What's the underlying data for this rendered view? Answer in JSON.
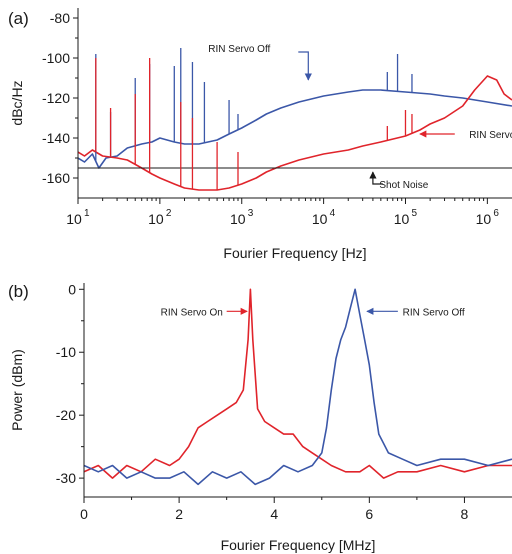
{
  "colors": {
    "blue": "#3b57a8",
    "red": "#e0242b",
    "black": "#1a1a1a"
  },
  "chart_data": [
    {
      "panel": "(a)",
      "type": "line",
      "xscale": "log",
      "xlim": [
        10,
        2000000
      ],
      "ylim": [
        -170,
        -75
      ],
      "ylabel": "dBc/Hz",
      "xlabel": "Fourier Frequency [Hz]",
      "x_ticks": [
        {
          "base": "10",
          "exp": "1",
          "value": 10
        },
        {
          "base": "10",
          "exp": "2",
          "value": 100
        },
        {
          "base": "10",
          "exp": "3",
          "value": 1000
        },
        {
          "base": "10",
          "exp": "4",
          "value": 10000
        },
        {
          "base": "10",
          "exp": "5",
          "value": 100000
        },
        {
          "base": "10",
          "exp": "6",
          "value": 1000000
        }
      ],
      "y_ticks": [
        {
          "label": "-80",
          "value": -80
        },
        {
          "label": "-100",
          "value": -100
        },
        {
          "label": "-120",
          "value": -120
        },
        {
          "label": "-140",
          "value": -140
        },
        {
          "label": "-160",
          "value": -160
        }
      ],
      "series": [
        {
          "name": "RIN Servo Off",
          "color": "#3b57a8",
          "x": [
            10,
            12,
            15,
            18,
            22,
            30,
            40,
            60,
            80,
            100,
            150,
            200,
            300,
            500,
            700,
            1000,
            1500,
            2000,
            3000,
            5000,
            10000,
            20000,
            30000,
            50000,
            100000,
            200000,
            300000,
            500000,
            1000000,
            2000000
          ],
          "y": [
            -150,
            -152,
            -148,
            -155,
            -150,
            -149,
            -145,
            -143,
            -142,
            -140,
            -142,
            -143,
            -143,
            -141,
            -138,
            -135,
            -131,
            -128,
            -125,
            -122,
            -119,
            -117,
            -116,
            -116,
            -117,
            -118,
            -119,
            -120,
            -122,
            -124
          ]
        },
        {
          "name": "RIN Servo On",
          "color": "#e0242b",
          "x": [
            10,
            12,
            15,
            20,
            30,
            40,
            60,
            80,
            100,
            150,
            200,
            300,
            500,
            700,
            1000,
            1500,
            2000,
            3000,
            5000,
            10000,
            20000,
            30000,
            50000,
            100000,
            150000,
            200000,
            300000,
            500000,
            700000,
            1000000,
            1300000,
            1600000,
            2000000
          ],
          "y": [
            -147,
            -149,
            -146,
            -149,
            -150,
            -151,
            -155,
            -158,
            -160,
            -163,
            -165,
            -166,
            -166,
            -165,
            -163,
            -160,
            -157,
            -154,
            -151,
            -148,
            -146,
            -144,
            -142,
            -139,
            -136,
            -133,
            -130,
            -124,
            -116,
            -109,
            -111,
            -118,
            -121
          ]
        },
        {
          "name": "Shot Noise",
          "color": "#1a1a1a",
          "x": [
            10,
            2000000
          ],
          "y": [
            -155,
            -155
          ]
        }
      ],
      "spikes": [
        {
          "series": "RIN Servo Off",
          "x": 16.5,
          "top": -98
        },
        {
          "series": "RIN Servo Off",
          "x": 25,
          "top": -127
        },
        {
          "series": "RIN Servo Off",
          "x": 50,
          "top": -110
        },
        {
          "series": "RIN Servo Off",
          "x": 75,
          "top": -103
        },
        {
          "series": "RIN Servo Off",
          "x": 150,
          "top": -104
        },
        {
          "series": "RIN Servo Off",
          "x": 180,
          "top": -95
        },
        {
          "series": "RIN Servo Off",
          "x": 250,
          "top": -102
        },
        {
          "series": "RIN Servo Off",
          "x": 350,
          "top": -112
        },
        {
          "series": "RIN Servo Off",
          "x": 700,
          "top": -121
        },
        {
          "series": "RIN Servo Off",
          "x": 900,
          "top": -128
        },
        {
          "series": "RIN Servo Off",
          "x": 60000,
          "top": -107
        },
        {
          "series": "RIN Servo Off",
          "x": 80000,
          "top": -98
        },
        {
          "series": "RIN Servo Off",
          "x": 120000,
          "top": -108
        },
        {
          "series": "RIN Servo On",
          "x": 16.5,
          "top": -100
        },
        {
          "series": "RIN Servo On",
          "x": 25,
          "top": -125
        },
        {
          "series": "RIN Servo On",
          "x": 50,
          "top": -118
        },
        {
          "series": "RIN Servo On",
          "x": 75,
          "top": -100
        },
        {
          "series": "RIN Servo On",
          "x": 180,
          "top": -122
        },
        {
          "series": "RIN Servo On",
          "x": 250,
          "top": -130
        },
        {
          "series": "RIN Servo On",
          "x": 500,
          "top": -142
        },
        {
          "series": "RIN Servo On",
          "x": 900,
          "top": -147
        },
        {
          "series": "RIN Servo On",
          "x": 60000,
          "top": -134
        },
        {
          "series": "RIN Servo On",
          "x": 100000,
          "top": -126
        },
        {
          "series": "RIN Servo On",
          "x": 120000,
          "top": -128
        }
      ],
      "annotations": [
        {
          "text": "RIN Servo Off",
          "tail": [
            6500,
            -97
          ],
          "head": [
            6500,
            -111
          ],
          "text_at": [
            40,
            -98
          ],
          "anchor": "start"
        },
        {
          "text": "RIN Servo On",
          "tail": [
            400000,
            -138
          ],
          "head": [
            150000,
            -138
          ],
          "text_at": [
            600000,
            -138
          ],
          "anchor": "start"
        },
        {
          "text": "Shot Noise",
          "tail": [
            40000,
            -162
          ],
          "head": [
            40000,
            -157
          ],
          "text_at": [
            48000,
            -163
          ],
          "anchor": "start"
        }
      ]
    },
    {
      "panel": "(b)",
      "type": "line",
      "xlim": [
        0,
        9
      ],
      "ylim": [
        -33,
        1
      ],
      "ylabel": "Power (dBm)",
      "xlabel": "Fourier Frequency [MHz]",
      "x_ticks": [
        {
          "label": "0",
          "value": 0
        },
        {
          "label": "2",
          "value": 2
        },
        {
          "label": "4",
          "value": 4
        },
        {
          "label": "6",
          "value": 6
        },
        {
          "label": "8",
          "value": 8
        }
      ],
      "y_ticks": [
        {
          "label": "0",
          "value": 0
        },
        {
          "label": "-10",
          "value": -10
        },
        {
          "label": "-20",
          "value": -20
        },
        {
          "label": "-30",
          "value": -30
        }
      ],
      "series": [
        {
          "name": "RIN Servo On",
          "color": "#e0242b",
          "x": [
            0,
            0.3,
            0.6,
            0.9,
            1.2,
            1.5,
            1.8,
            2.0,
            2.2,
            2.4,
            2.6,
            2.8,
            3.0,
            3.2,
            3.35,
            3.45,
            3.5,
            3.55,
            3.65,
            3.8,
            4.0,
            4.2,
            4.4,
            4.6,
            4.8,
            5.0,
            5.2,
            5.5,
            5.8,
            6.0,
            6.3,
            6.6,
            7.0,
            7.5,
            8.0,
            8.5,
            9.0
          ],
          "y": [
            -29,
            -28,
            -30,
            -28,
            -29,
            -27,
            -28,
            -27,
            -25,
            -22,
            -21,
            -20,
            -19,
            -18,
            -16,
            -8,
            0,
            -8,
            -19,
            -21,
            -22,
            -23,
            -23,
            -25,
            -26,
            -27,
            -28,
            -29,
            -29,
            -28,
            -30,
            -29,
            -29,
            -28,
            -29,
            -28,
            -28
          ]
        },
        {
          "name": "RIN Servo Off",
          "color": "#3b57a8",
          "x": [
            0,
            0.3,
            0.6,
            0.9,
            1.2,
            1.5,
            1.8,
            2.1,
            2.4,
            2.7,
            3.0,
            3.3,
            3.6,
            3.9,
            4.2,
            4.5,
            4.8,
            5.0,
            5.1,
            5.2,
            5.3,
            5.4,
            5.5,
            5.6,
            5.7,
            5.8,
            5.9,
            6.0,
            6.1,
            6.2,
            6.4,
            6.7,
            7.0,
            7.5,
            8.0,
            8.5,
            9.0
          ],
          "y": [
            -28,
            -29,
            -28,
            -30,
            -29,
            -30,
            -30,
            -29,
            -31,
            -29,
            -30,
            -29,
            -31,
            -30,
            -28,
            -29,
            -28,
            -26,
            -22,
            -16,
            -11,
            -8,
            -6,
            -3,
            0,
            -4,
            -8,
            -12,
            -18,
            -23,
            -26,
            -27,
            -28,
            -27,
            -27,
            -28,
            -27
          ]
        }
      ],
      "annotations": [
        {
          "text": "RIN Servo On",
          "tail": [
            3.0,
            -3.5
          ],
          "head": [
            3.43,
            -3.5
          ],
          "text_at": [
            2.92,
            -3.5
          ],
          "anchor": "end"
        },
        {
          "text": "RIN Servo Off",
          "tail": [
            6.6,
            -3.5
          ],
          "head": [
            5.95,
            -3.5
          ],
          "text_at": [
            6.7,
            -3.5
          ],
          "anchor": "start"
        }
      ]
    }
  ]
}
